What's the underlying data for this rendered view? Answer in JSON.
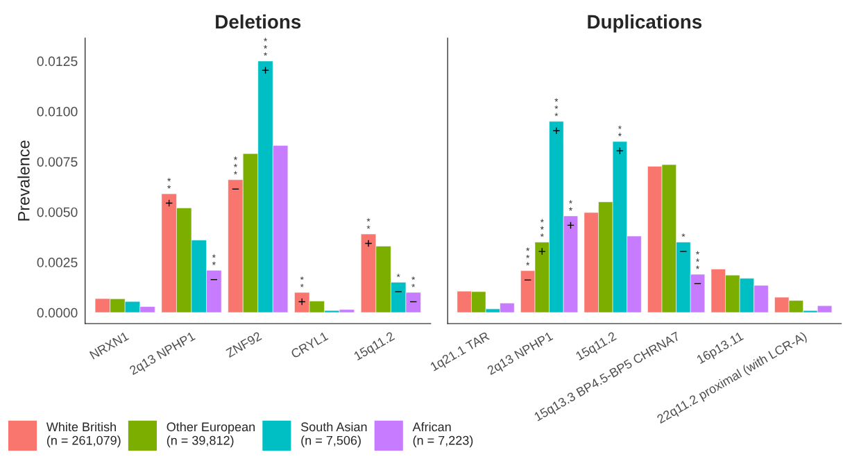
{
  "chart_data": [
    {
      "type": "bar",
      "title": "Deletions",
      "ylabel": "Prevalence",
      "categories": [
        "NRXN1",
        "2q13 NPHP1",
        "ZNF92",
        "CRYL1",
        "15q11.2"
      ],
      "series": [
        {
          "name": "White British\n(n = 261,079)",
          "color": "#f8766d",
          "values": [
            0.00069,
            0.0059,
            0.0066,
            0.001,
            0.0039
          ],
          "value_labels": [
            null,
            "**\n+",
            "***\n−",
            "**\n+",
            "**\n+"
          ]
        },
        {
          "name": "Other European\n(n = 39,812)",
          "color": "#7cae00",
          "values": [
            0.00068,
            0.0052,
            0.0079,
            0.00057,
            0.0033
          ],
          "value_labels": [
            null,
            null,
            null,
            null,
            null
          ]
        },
        {
          "name": "South Asian\n(n = 7,506)",
          "color": "#00bfc4",
          "values": [
            0.00055,
            0.0036,
            0.0125,
            0.0001,
            0.0015
          ],
          "value_labels": [
            null,
            null,
            "***\n+",
            null,
            "*\n−"
          ]
        },
        {
          "name": "African\n(n = 7,223)",
          "color": "#c77cff",
          "values": [
            0.0003,
            0.0021,
            0.0083,
            0.00015,
            0.001
          ],
          "value_labels": [
            null,
            "**\n−",
            null,
            null,
            "**\n−"
          ]
        }
      ],
      "ylim": [
        -0.00055,
        0.01364
      ],
      "yticks": [
        {
          "value": 0,
          "label": "0.0000"
        },
        {
          "value": 0.0025,
          "label": "0.0025"
        },
        {
          "value": 0.005,
          "label": "0.0050"
        },
        {
          "value": 0.0075,
          "label": "0.0075"
        },
        {
          "value": 0.01,
          "label": "0.0100"
        },
        {
          "value": 0.0125,
          "label": "0.0125"
        }
      ],
      "grid": false,
      "legend": "bottom"
    },
    {
      "type": "bar",
      "title": "Duplications",
      "categories": [
        "1q21.1 TAR",
        "2q13 NPHP1",
        "15q11.2",
        "15q13.3 BP4.5-BP5 CHRNA7",
        "16p13.11",
        "22q11.2 proximal (with LCR-A)"
      ],
      "series": [
        {
          "color": "#f8766d",
          "values": [
            0.00106,
            0.00208,
            0.00497,
            0.00727,
            0.00216,
            0.00076
          ],
          "value_labels": [
            null,
            "***\n−",
            null,
            null,
            null,
            null
          ]
        },
        {
          "color": "#7cae00",
          "values": [
            0.00104,
            0.0035,
            0.0055,
            0.00735,
            0.00186,
            0.0006
          ],
          "value_labels": [
            null,
            "***\n+",
            null,
            null,
            null,
            null
          ]
        },
        {
          "color": "#00bfc4",
          "values": [
            0.00018,
            0.0095,
            0.0085,
            0.0035,
            0.0017,
            0.0001
          ],
          "value_labels": [
            null,
            "***\n+",
            "**\n+",
            "*\n−",
            null,
            null
          ]
        },
        {
          "color": "#c77cff",
          "values": [
            0.00047,
            0.0048,
            0.0038,
            0.0019,
            0.00135,
            0.00034
          ],
          "value_labels": [
            null,
            "**\n+",
            null,
            "***\n−",
            null,
            null
          ]
        }
      ],
      "ylim": [
        -0.00055,
        0.01364
      ],
      "tick_labels": "x",
      "grid": false,
      "legend": false
    }
  ]
}
